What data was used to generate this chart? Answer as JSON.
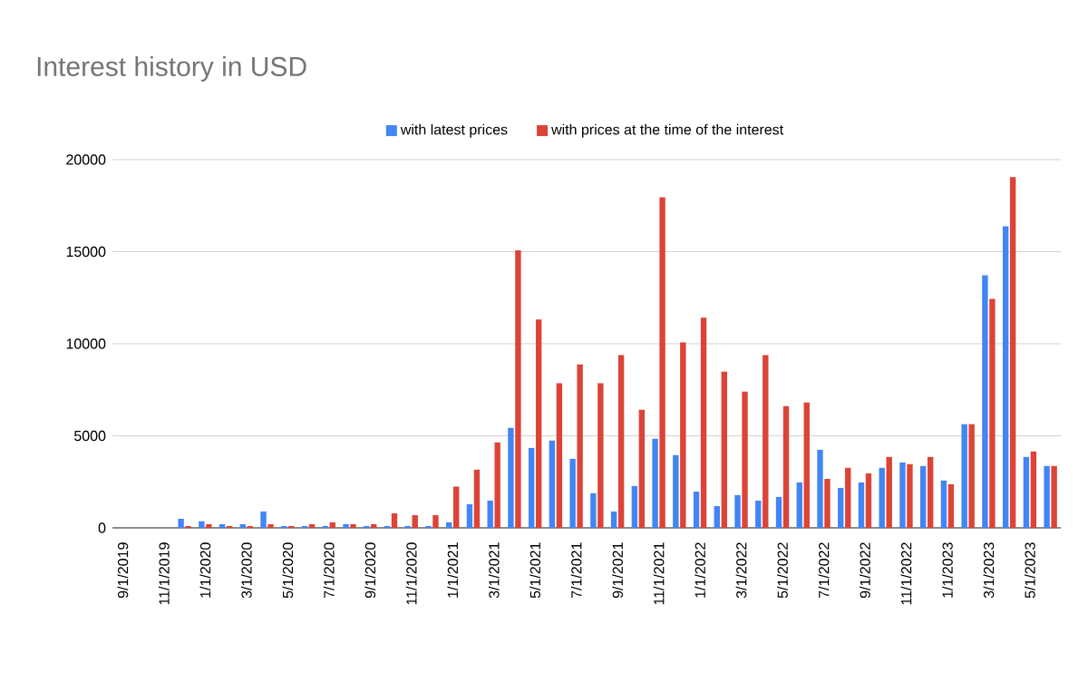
{
  "chart_data": {
    "type": "bar",
    "title": "Interest history in USD",
    "categories": [
      "9/1/2019",
      null,
      "11/1/2019",
      null,
      "1/1/2020",
      null,
      "3/1/2020",
      null,
      "5/1/2020",
      null,
      "7/1/2020",
      null,
      "9/1/2020",
      null,
      "11/1/2020",
      null,
      "1/1/2021",
      null,
      "3/1/2021",
      null,
      "5/1/2021",
      null,
      "7/1/2021",
      null,
      "9/1/2021",
      null,
      "11/1/2021",
      null,
      "1/1/2022",
      null,
      "3/1/2022",
      null,
      "5/1/2022",
      null,
      "7/1/2022",
      null,
      "9/1/2022",
      null,
      "11/1/2022",
      null,
      "1/1/2023",
      null,
      "3/1/2023",
      null,
      "5/1/2023",
      null
    ],
    "series": [
      {
        "name": "with latest prices",
        "color": "#4285f4",
        "values": [
          0,
          0,
          0,
          490,
          360,
          200,
          200,
          890,
          100,
          100,
          100,
          200,
          100,
          100,
          100,
          100,
          300,
          1280,
          1480,
          5430,
          4340,
          4740,
          3750,
          1880,
          890,
          2270,
          4840,
          3950,
          1970,
          1180,
          1780,
          1480,
          1680,
          2470,
          4240,
          2170,
          2470,
          3260,
          3550,
          3360,
          2570,
          5630,
          13720,
          16380,
          3850,
          3360
        ]
      },
      {
        "name": "with prices at the time of the interest",
        "color": "#db4437",
        "values": [
          0,
          0,
          0,
          100,
          200,
          100,
          100,
          200,
          100,
          200,
          300,
          200,
          200,
          790,
          690,
          690,
          2240,
          3160,
          4640,
          15070,
          11320,
          7860,
          8880,
          7860,
          9380,
          6420,
          17960,
          10070,
          11420,
          8490,
          7400,
          9380,
          6610,
          6810,
          2660,
          3260,
          2960,
          3850,
          3460,
          3850,
          2370,
          5630,
          12440,
          19050,
          4150,
          3360
        ]
      }
    ],
    "ylim": [
      0,
      20000
    ],
    "yticks": [
      0,
      5000,
      10000,
      15000,
      20000
    ],
    "grid": "y",
    "legend": "top"
  }
}
